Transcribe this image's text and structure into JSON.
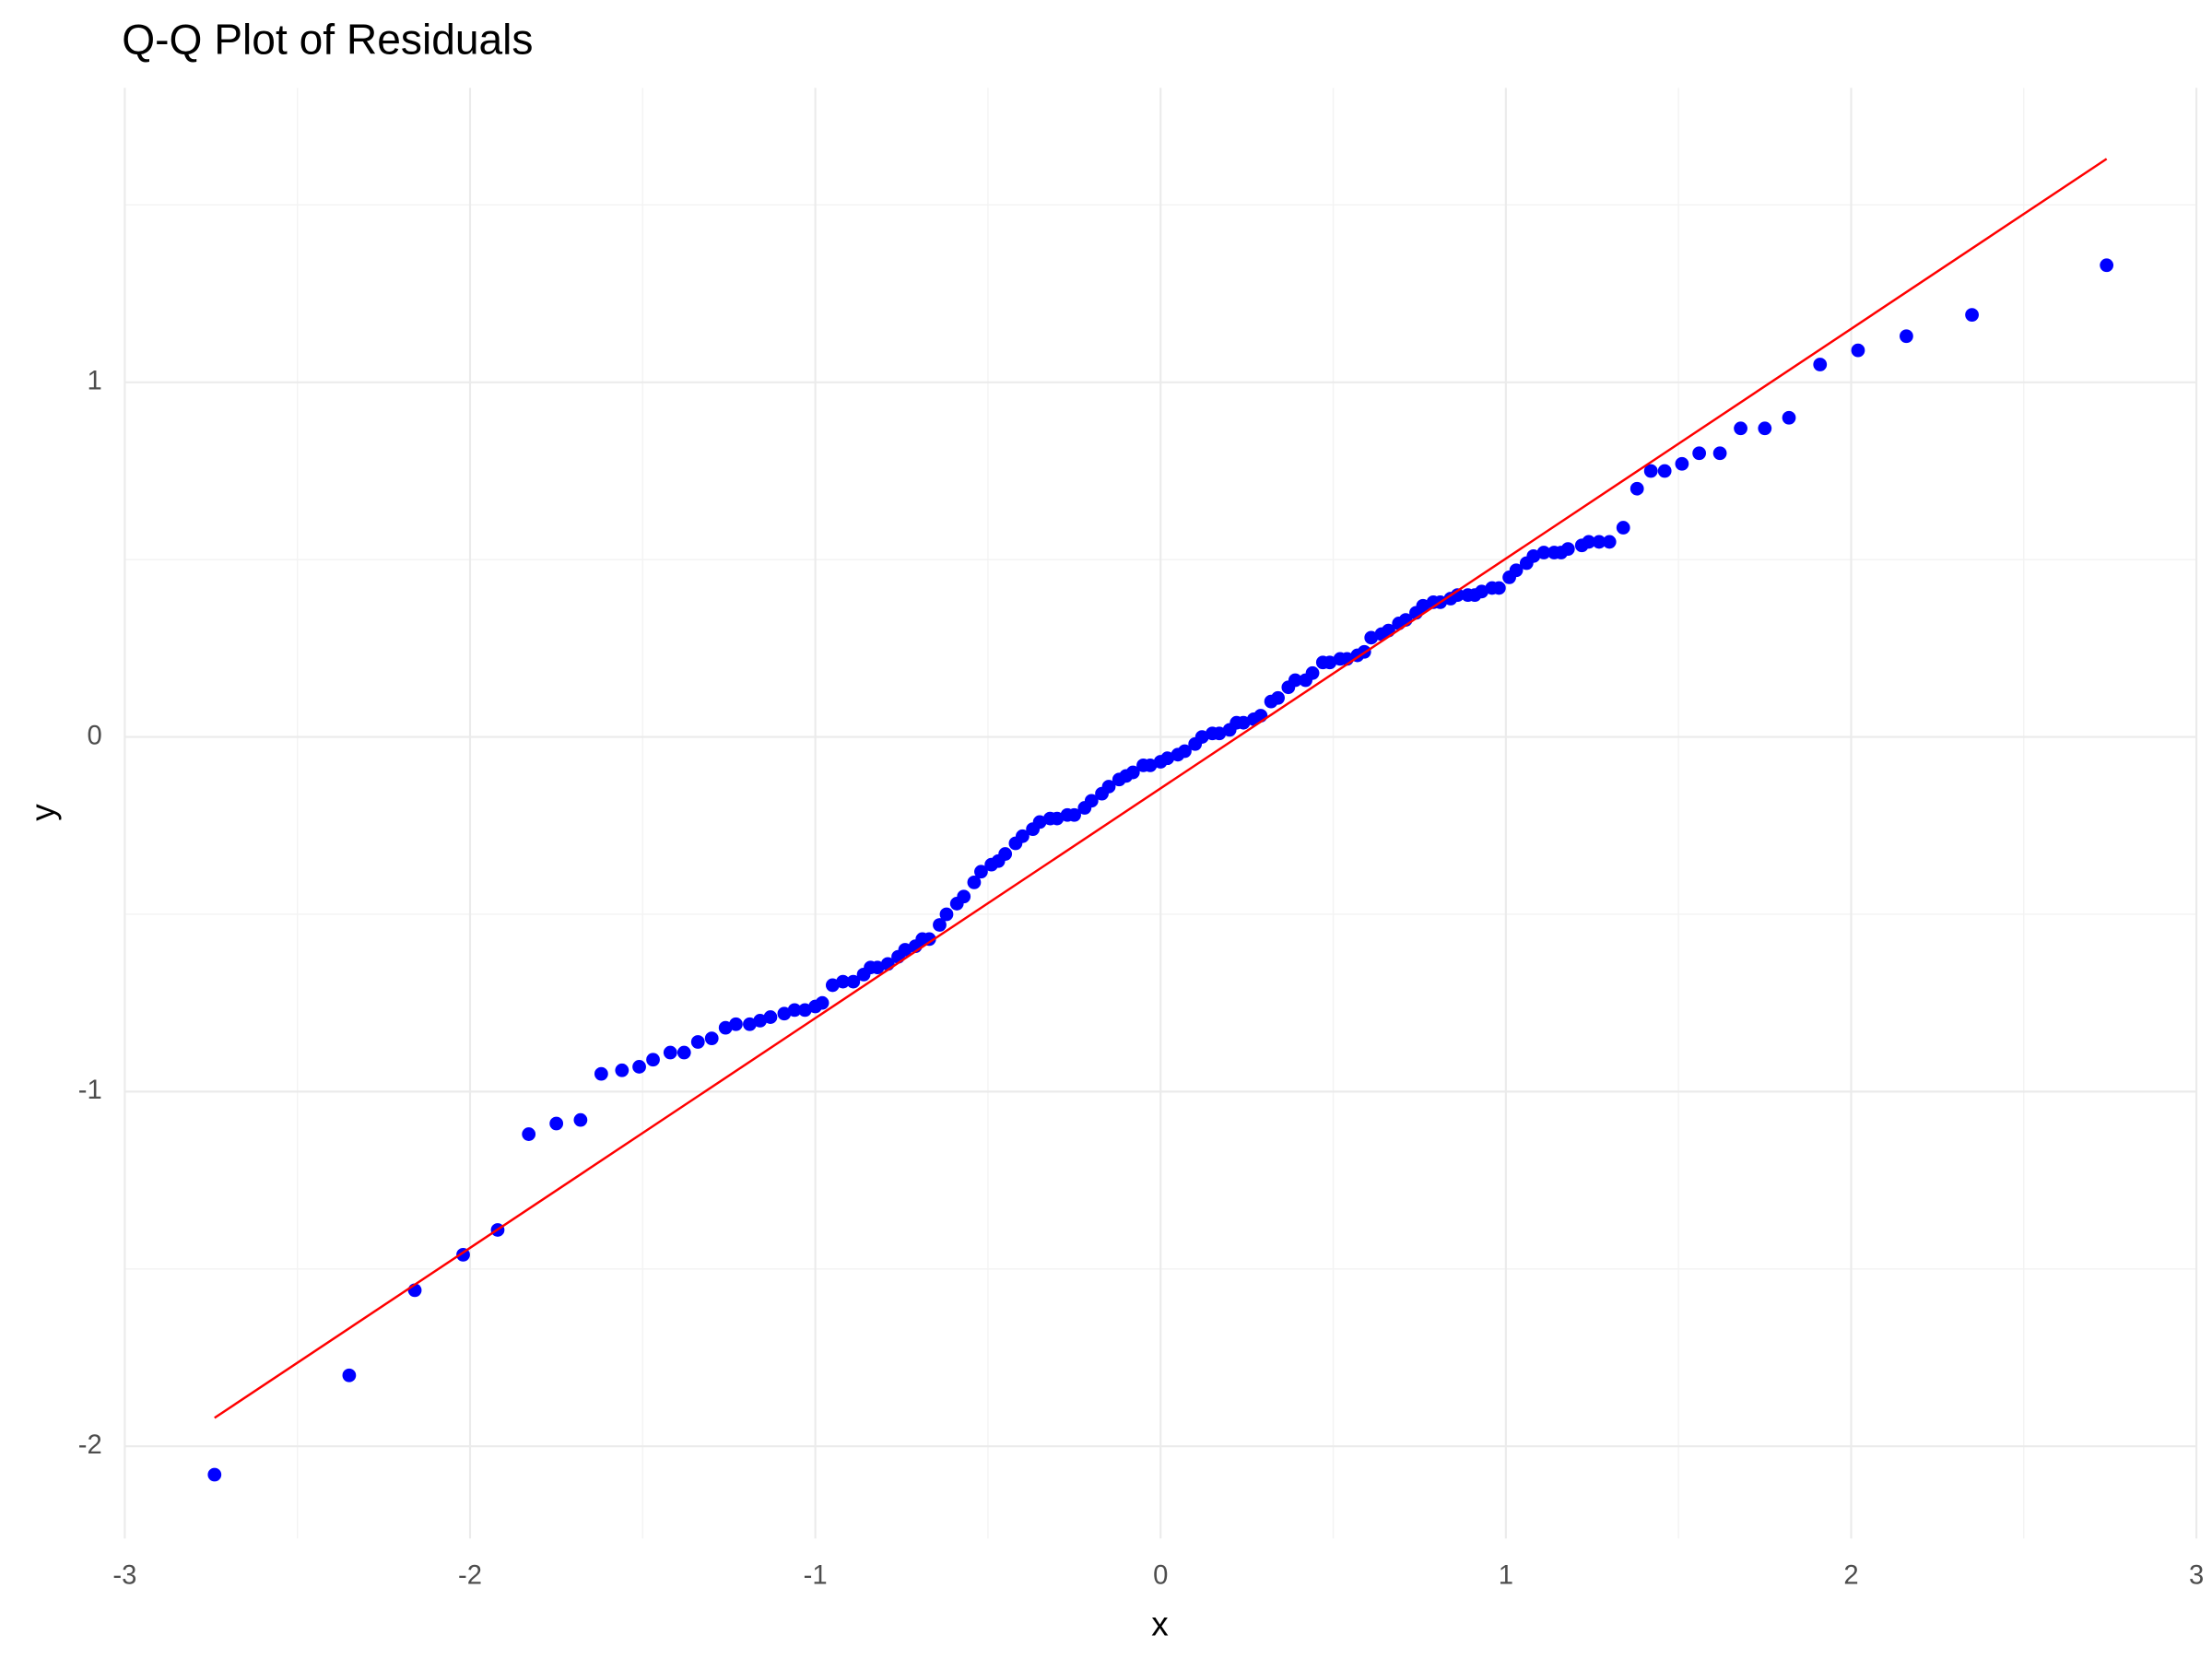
{
  "chart_data": {
    "type": "scatter",
    "title": "Q-Q Plot of Residuals",
    "x_label": "x",
    "y_label": "y",
    "color": "blue",
    "x": [
      -2.74,
      -2.35,
      -2.16,
      -2.02,
      -1.92,
      -1.83,
      -1.75,
      -1.68,
      -1.62,
      -1.56,
      -1.51,
      -1.47,
      -1.42,
      -1.38,
      -1.34,
      -1.3,
      -1.26,
      -1.23,
      -1.19,
      -1.16,
      -1.13,
      -1.09,
      -1.06,
      -1.03,
      -1.0,
      -0.98,
      -0.95,
      -0.92,
      -0.89,
      -0.86,
      -0.84,
      -0.82,
      -0.79,
      -0.76,
      -0.74,
      -0.71,
      -0.69,
      -0.67,
      -0.64,
      -0.62,
      -0.59,
      -0.57,
      -0.54,
      -0.52,
      -0.49,
      -0.47,
      -0.45,
      -0.42,
      -0.4,
      -0.37,
      -0.35,
      -0.32,
      -0.3,
      -0.27,
      -0.25,
      -0.22,
      -0.2,
      -0.17,
      -0.15,
      -0.12,
      -0.1,
      -0.08,
      -0.05,
      -0.03,
      0.0,
      0.02,
      0.05,
      0.07,
      0.1,
      0.12,
      0.15,
      0.17,
      0.2,
      0.22,
      0.24,
      0.27,
      0.29,
      0.32,
      0.34,
      0.37,
      0.39,
      0.42,
      0.44,
      0.47,
      0.49,
      0.52,
      0.54,
      0.57,
      0.59,
      0.61,
      0.64,
      0.66,
      0.69,
      0.71,
      0.74,
      0.76,
      0.79,
      0.81,
      0.84,
      0.86,
      0.89,
      0.91,
      0.93,
      0.96,
      0.98,
      1.01,
      1.03,
      1.06,
      1.08,
      1.11,
      1.14,
      1.16,
      1.18,
      1.22,
      1.24,
      1.27,
      1.3,
      1.34,
      1.38,
      1.42,
      1.46,
      1.51,
      1.56,
      1.62,
      1.68,
      1.75,
      1.82,
      1.91,
      2.02,
      2.16,
      2.35,
      2.74
    ],
    "values": [
      -2.08,
      -1.8,
      -1.56,
      -1.46,
      -1.39,
      -1.12,
      -1.09,
      -1.08,
      -0.95,
      -0.94,
      -0.93,
      -0.91,
      -0.89,
      -0.89,
      -0.86,
      -0.85,
      -0.82,
      -0.81,
      -0.81,
      -0.8,
      -0.79,
      -0.78,
      -0.77,
      -0.77,
      -0.76,
      -0.75,
      -0.7,
      -0.69,
      -0.69,
      -0.67,
      -0.65,
      -0.65,
      -0.64,
      -0.62,
      -0.6,
      -0.59,
      -0.57,
      -0.57,
      -0.53,
      -0.5,
      -0.47,
      -0.45,
      -0.41,
      -0.38,
      -0.36,
      -0.35,
      -0.33,
      -0.3,
      -0.28,
      -0.26,
      -0.24,
      -0.23,
      -0.23,
      -0.22,
      -0.22,
      -0.2,
      -0.18,
      -0.16,
      -0.14,
      -0.12,
      -0.11,
      -0.1,
      -0.08,
      -0.08,
      -0.07,
      -0.06,
      -0.05,
      -0.04,
      -0.02,
      0.0,
      0.01,
      0.01,
      0.02,
      0.04,
      0.04,
      0.05,
      0.06,
      0.1,
      0.11,
      0.14,
      0.16,
      0.16,
      0.18,
      0.21,
      0.21,
      0.22,
      0.22,
      0.23,
      0.24,
      0.28,
      0.29,
      0.3,
      0.32,
      0.33,
      0.35,
      0.37,
      0.38,
      0.38,
      0.39,
      0.4,
      0.4,
      0.4,
      0.41,
      0.42,
      0.42,
      0.45,
      0.47,
      0.49,
      0.51,
      0.52,
      0.52,
      0.52,
      0.53,
      0.54,
      0.55,
      0.55,
      0.55,
      0.59,
      0.7,
      0.75,
      0.75,
      0.77,
      0.8,
      0.8,
      0.87,
      0.87,
      0.9,
      1.05,
      1.09,
      1.13,
      1.19,
      1.33
    ],
    "reference_line": {
      "x": [
        -2.74,
        2.74
      ],
      "y": [
        -1.92,
        1.63
      ],
      "color": "red"
    },
    "xlim": [
      -3,
      3
    ],
    "xticks": [
      -3,
      -2,
      -1,
      0,
      1,
      2,
      3
    ],
    "ylim": [
      -2.26,
      1.83
    ],
    "yticks": [
      -2,
      -1,
      0,
      1
    ],
    "grid": true,
    "minor_grid": true
  }
}
